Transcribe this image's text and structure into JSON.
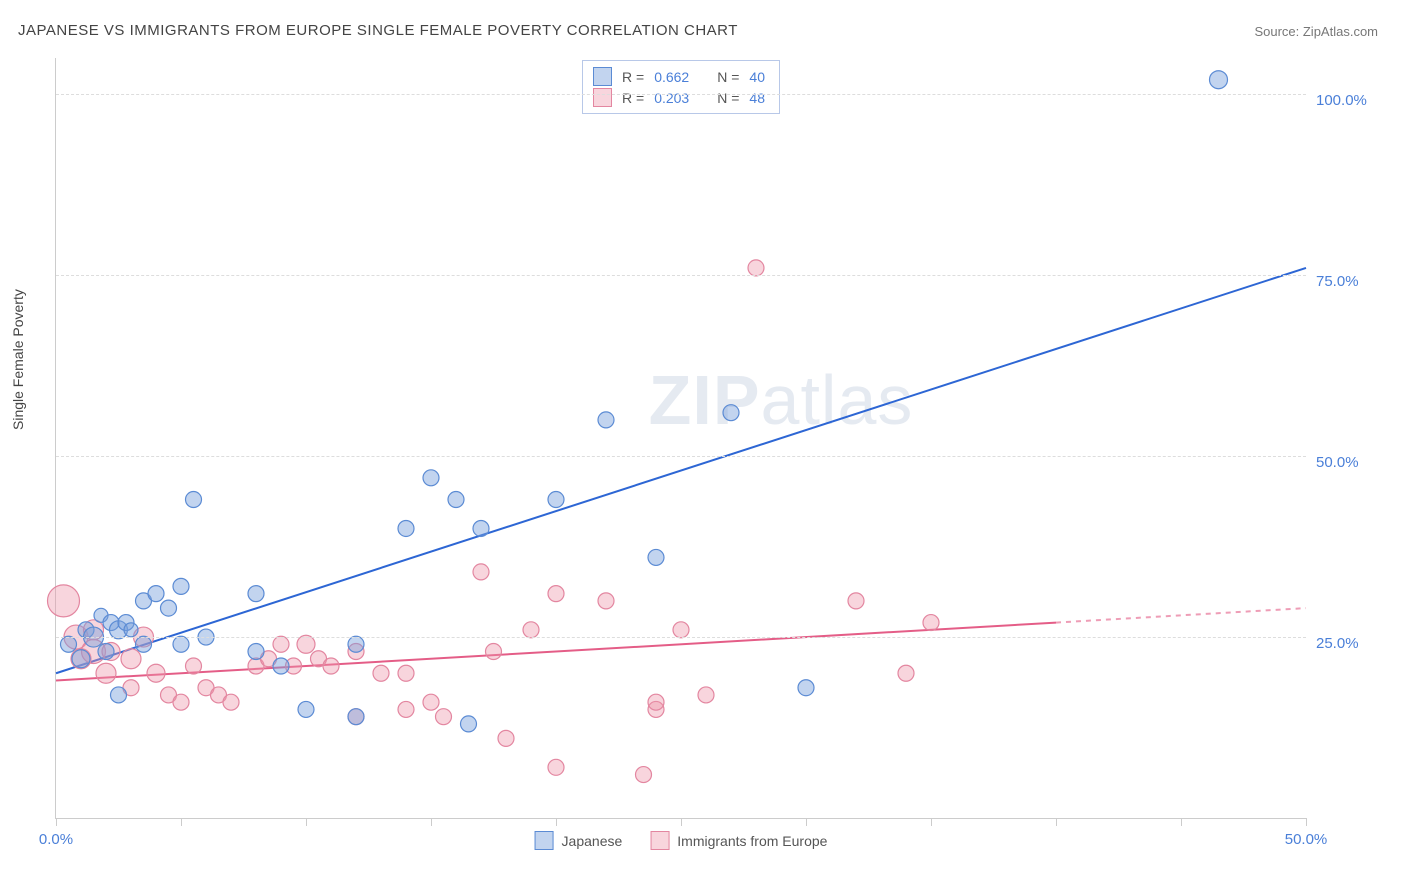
{
  "title": "JAPANESE VS IMMIGRANTS FROM EUROPE SINGLE FEMALE POVERTY CORRELATION CHART",
  "source": "Source: ZipAtlas.com",
  "y_axis_label": "Single Female Poverty",
  "watermark": {
    "bold": "ZIP",
    "rest": "atlas"
  },
  "chart": {
    "type": "scatter",
    "xlim": [
      0,
      50
    ],
    "ylim": [
      0,
      105
    ],
    "xticks": [
      0,
      5,
      10,
      15,
      20,
      25,
      30,
      35,
      40,
      45,
      50
    ],
    "xtick_labels_shown": {
      "0": "0.0%",
      "50": "50.0%"
    },
    "ygrid": [
      25,
      50,
      75,
      100
    ],
    "ytick_labels": {
      "25": "25.0%",
      "50": "50.0%",
      "75": "75.0%",
      "100": "100.0%"
    },
    "background_color": "#ffffff",
    "grid_color": "#dddddd",
    "axis_color": "#cccccc",
    "tick_label_color": "#4a7fd8",
    "title_color": "#444444",
    "title_fontsize": 15,
    "label_fontsize": 14,
    "tick_fontsize": 15,
    "marker_base_radius": 8,
    "series": [
      {
        "name": "Japanese",
        "fill": "rgba(120,160,220,0.45)",
        "stroke": "#5b8bd4",
        "stroke_width": 1.2,
        "R": "0.662",
        "N": "40",
        "regression": {
          "x1": 0,
          "y1": 20,
          "x2": 50,
          "y2": 76,
          "solid_to_x": 50,
          "color": "#2d66d4",
          "width": 2
        },
        "points": [
          {
            "x": 0.5,
            "y": 24,
            "r": 8
          },
          {
            "x": 1.0,
            "y": 22,
            "r": 9
          },
          {
            "x": 1.2,
            "y": 26,
            "r": 8
          },
          {
            "x": 1.5,
            "y": 25,
            "r": 10
          },
          {
            "x": 1.8,
            "y": 28,
            "r": 7
          },
          {
            "x": 2.0,
            "y": 23,
            "r": 8
          },
          {
            "x": 2.2,
            "y": 27,
            "r": 8
          },
          {
            "x": 2.5,
            "y": 26,
            "r": 9
          },
          {
            "x": 2.5,
            "y": 17,
            "r": 8
          },
          {
            "x": 2.8,
            "y": 27,
            "r": 8
          },
          {
            "x": 3.0,
            "y": 26,
            "r": 7
          },
          {
            "x": 3.5,
            "y": 30,
            "r": 8
          },
          {
            "x": 3.5,
            "y": 24,
            "r": 8
          },
          {
            "x": 4.0,
            "y": 31,
            "r": 8
          },
          {
            "x": 4.5,
            "y": 29,
            "r": 8
          },
          {
            "x": 5.0,
            "y": 24,
            "r": 8
          },
          {
            "x": 5.0,
            "y": 32,
            "r": 8
          },
          {
            "x": 5.5,
            "y": 44,
            "r": 8
          },
          {
            "x": 6.0,
            "y": 25,
            "r": 8
          },
          {
            "x": 8.0,
            "y": 23,
            "r": 8
          },
          {
            "x": 8.0,
            "y": 31,
            "r": 8
          },
          {
            "x": 9.0,
            "y": 21,
            "r": 8
          },
          {
            "x": 10.0,
            "y": 15,
            "r": 8
          },
          {
            "x": 12.0,
            "y": 24,
            "r": 8
          },
          {
            "x": 12.0,
            "y": 14,
            "r": 8
          },
          {
            "x": 14.0,
            "y": 40,
            "r": 8
          },
          {
            "x": 15.0,
            "y": 47,
            "r": 8
          },
          {
            "x": 16.0,
            "y": 44,
            "r": 8
          },
          {
            "x": 16.5,
            "y": 13,
            "r": 8
          },
          {
            "x": 17.0,
            "y": 40,
            "r": 8
          },
          {
            "x": 20.0,
            "y": 44,
            "r": 8
          },
          {
            "x": 22.0,
            "y": 55,
            "r": 8
          },
          {
            "x": 24.0,
            "y": 36,
            "r": 8
          },
          {
            "x": 27.0,
            "y": 56,
            "r": 8
          },
          {
            "x": 30.0,
            "y": 18,
            "r": 8
          },
          {
            "x": 46.5,
            "y": 102,
            "r": 9
          }
        ]
      },
      {
        "name": "Immigrants from Europe",
        "fill": "rgba(238,150,170,0.40)",
        "stroke": "#e386a0",
        "stroke_width": 1.2,
        "R": "0.203",
        "N": "48",
        "regression": {
          "x1": 0,
          "y1": 19,
          "x2": 50,
          "y2": 29,
          "solid_to_x": 40,
          "color": "#e45d87",
          "width": 2
        },
        "points": [
          {
            "x": 0.3,
            "y": 30,
            "r": 16
          },
          {
            "x": 0.8,
            "y": 25,
            "r": 12
          },
          {
            "x": 1.0,
            "y": 22,
            "r": 10
          },
          {
            "x": 1.5,
            "y": 23,
            "r": 12
          },
          {
            "x": 1.5,
            "y": 26,
            "r": 10
          },
          {
            "x": 2.0,
            "y": 20,
            "r": 10
          },
          {
            "x": 2.2,
            "y": 23,
            "r": 9
          },
          {
            "x": 3.0,
            "y": 22,
            "r": 10
          },
          {
            "x": 3.0,
            "y": 18,
            "r": 8
          },
          {
            "x": 3.5,
            "y": 25,
            "r": 10
          },
          {
            "x": 4.0,
            "y": 20,
            "r": 9
          },
          {
            "x": 4.5,
            "y": 17,
            "r": 8
          },
          {
            "x": 5.0,
            "y": 16,
            "r": 8
          },
          {
            "x": 5.5,
            "y": 21,
            "r": 8
          },
          {
            "x": 6.0,
            "y": 18,
            "r": 8
          },
          {
            "x": 6.5,
            "y": 17,
            "r": 8
          },
          {
            "x": 7.0,
            "y": 16,
            "r": 8
          },
          {
            "x": 8.0,
            "y": 21,
            "r": 8
          },
          {
            "x": 8.5,
            "y": 22,
            "r": 8
          },
          {
            "x": 9.0,
            "y": 24,
            "r": 8
          },
          {
            "x": 9.5,
            "y": 21,
            "r": 8
          },
          {
            "x": 10.0,
            "y": 24,
            "r": 9
          },
          {
            "x": 10.5,
            "y": 22,
            "r": 8
          },
          {
            "x": 11.0,
            "y": 21,
            "r": 8
          },
          {
            "x": 12.0,
            "y": 23,
            "r": 8
          },
          {
            "x": 12.0,
            "y": 14,
            "r": 8
          },
          {
            "x": 13.0,
            "y": 20,
            "r": 8
          },
          {
            "x": 14.0,
            "y": 20,
            "r": 8
          },
          {
            "x": 14.0,
            "y": 15,
            "r": 8
          },
          {
            "x": 15.0,
            "y": 16,
            "r": 8
          },
          {
            "x": 15.5,
            "y": 14,
            "r": 8
          },
          {
            "x": 17.0,
            "y": 34,
            "r": 8
          },
          {
            "x": 17.5,
            "y": 23,
            "r": 8
          },
          {
            "x": 18.0,
            "y": 11,
            "r": 8
          },
          {
            "x": 19.0,
            "y": 26,
            "r": 8
          },
          {
            "x": 20.0,
            "y": 7,
            "r": 8
          },
          {
            "x": 20.0,
            "y": 31,
            "r": 8
          },
          {
            "x": 22.0,
            "y": 30,
            "r": 8
          },
          {
            "x": 23.5,
            "y": 6,
            "r": 8
          },
          {
            "x": 24.0,
            "y": 15,
            "r": 8
          },
          {
            "x": 24.0,
            "y": 16,
            "r": 8
          },
          {
            "x": 25.0,
            "y": 26,
            "r": 8
          },
          {
            "x": 26.0,
            "y": 17,
            "r": 8
          },
          {
            "x": 28.0,
            "y": 76,
            "r": 8
          },
          {
            "x": 32.0,
            "y": 30,
            "r": 8
          },
          {
            "x": 34.0,
            "y": 20,
            "r": 8
          },
          {
            "x": 35.0,
            "y": 27,
            "r": 8
          }
        ]
      }
    ]
  },
  "legend_top": {
    "rows": [
      {
        "swatch": "blue",
        "r_label": "R =",
        "r_val": "0.662",
        "n_label": "N =",
        "n_val": "40"
      },
      {
        "swatch": "pink",
        "r_label": "R =",
        "r_val": "0.203",
        "n_label": "N =",
        "n_val": "48"
      }
    ]
  },
  "legend_bottom": {
    "items": [
      {
        "swatch": "blue",
        "label": "Japanese"
      },
      {
        "swatch": "pink",
        "label": "Immigrants from Europe"
      }
    ]
  }
}
